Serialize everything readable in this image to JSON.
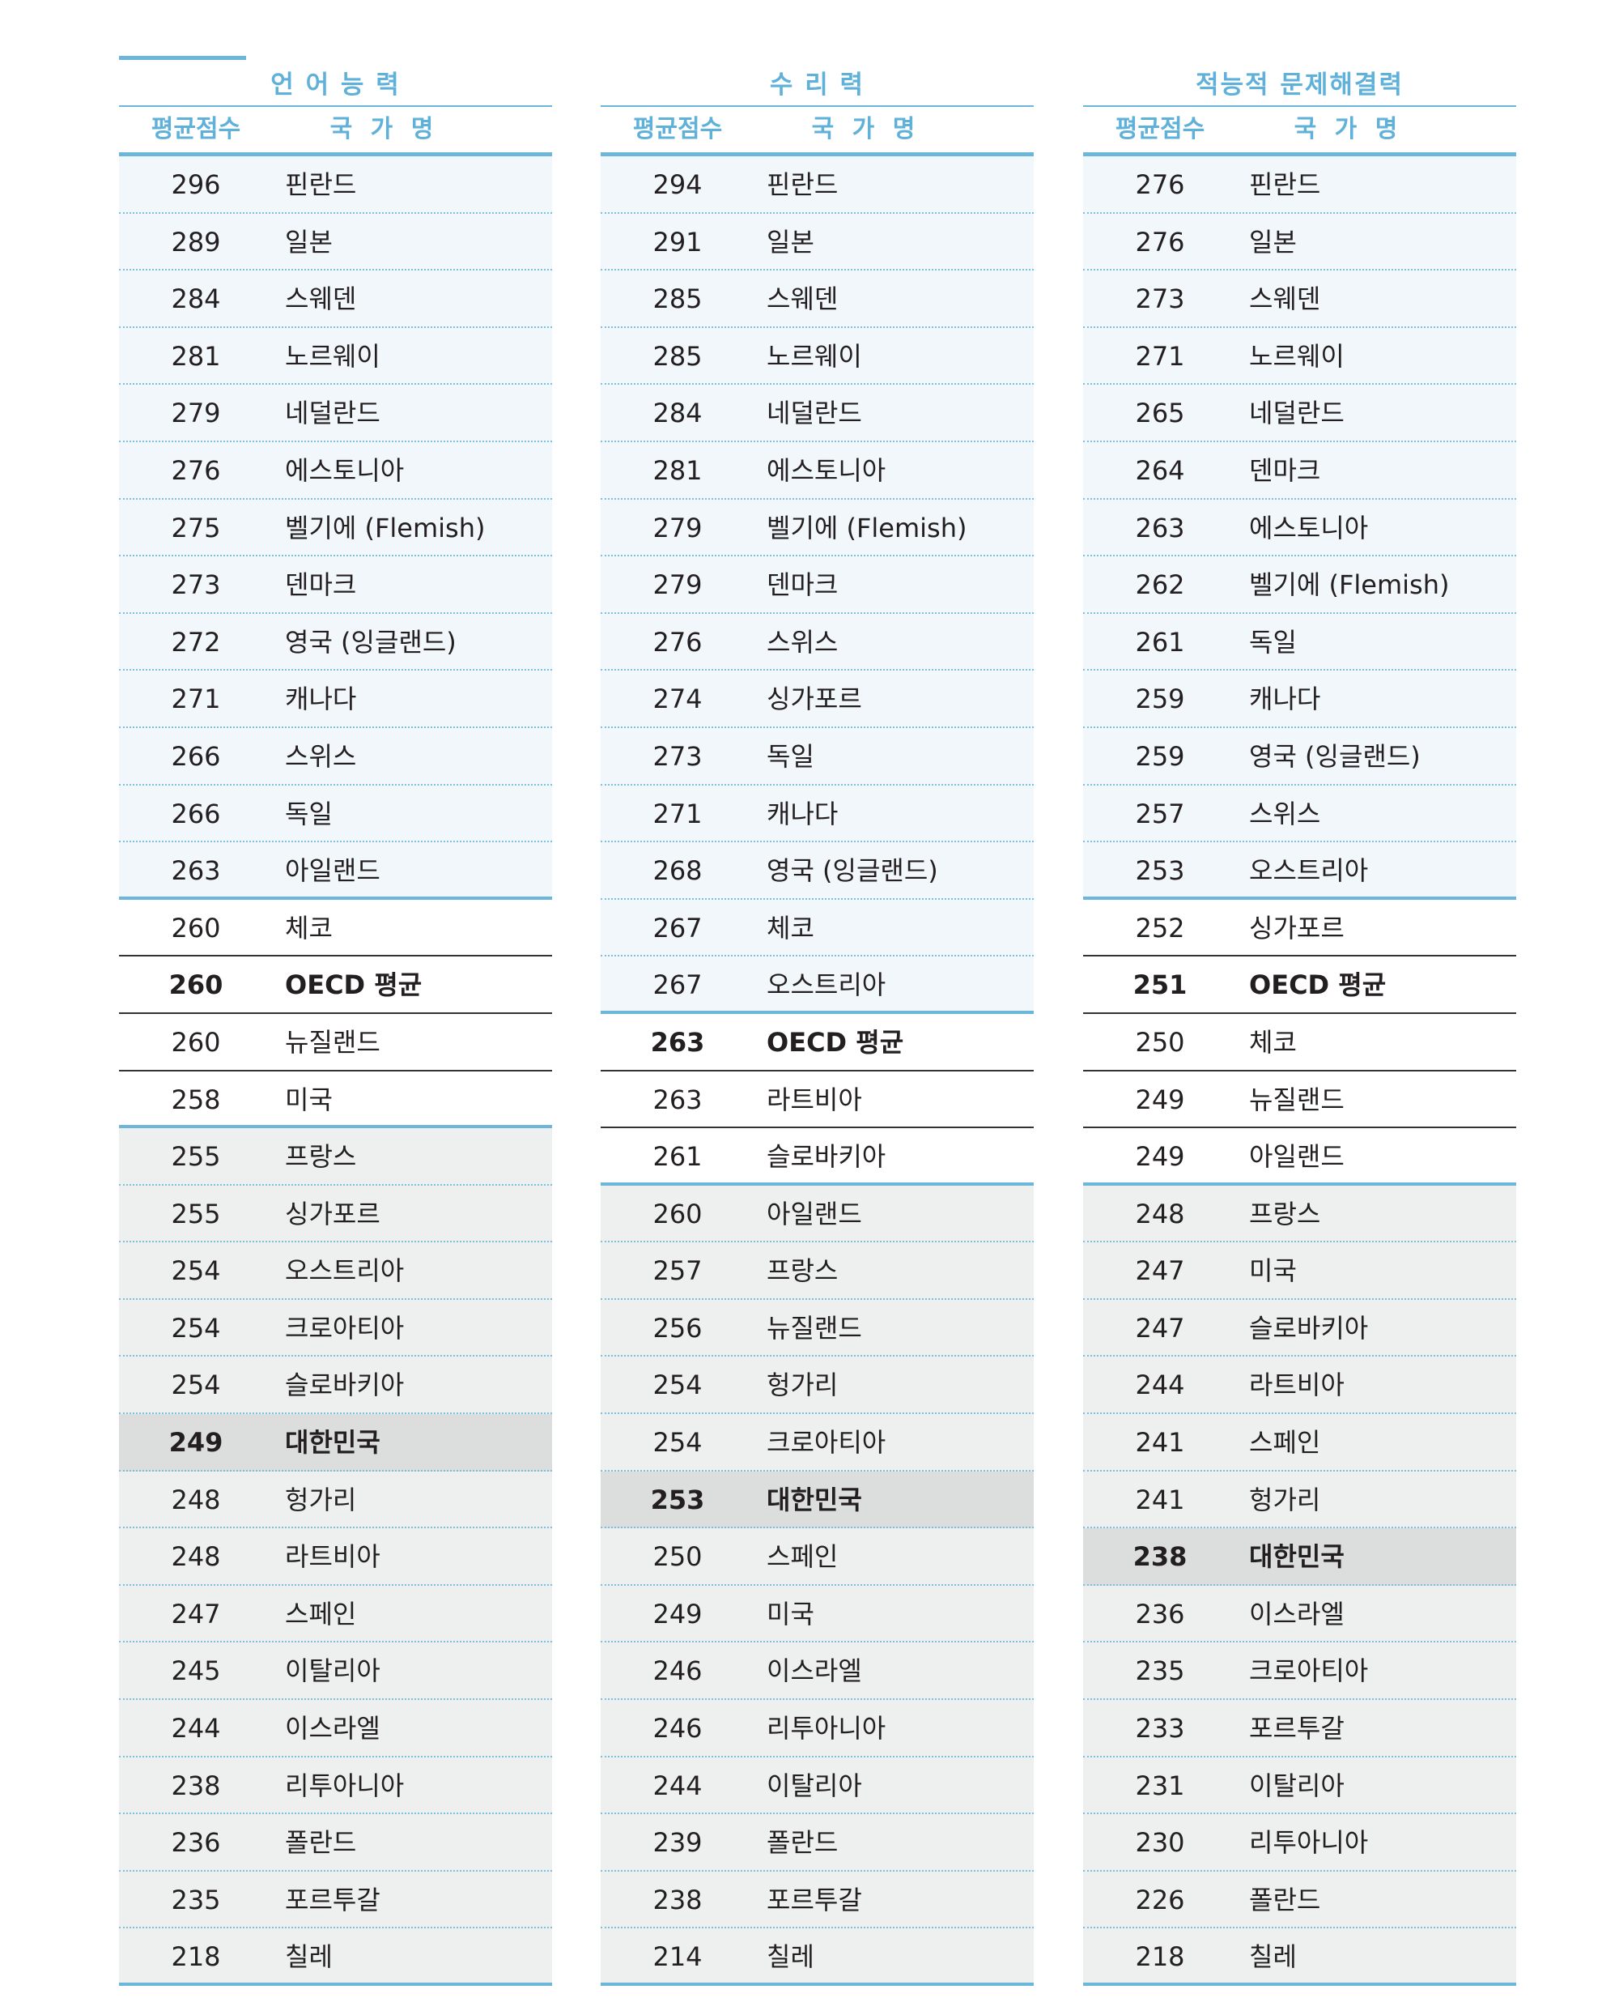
{
  "columns": [
    {
      "title": "언 어 능 력",
      "header_score": "평균점수",
      "header_country": "국 가 명",
      "rows": [
        {
          "score": "296",
          "country": "핀란드",
          "group": "above"
        },
        {
          "score": "289",
          "country": "일본",
          "group": "above"
        },
        {
          "score": "284",
          "country": "스웨덴",
          "group": "above"
        },
        {
          "score": "281",
          "country": "노르웨이",
          "group": "above"
        },
        {
          "score": "279",
          "country": "네덜란드",
          "group": "above"
        },
        {
          "score": "276",
          "country": "에스토니아",
          "group": "above"
        },
        {
          "score": "275",
          "country": "벨기에 (Flemish)",
          "group": "above"
        },
        {
          "score": "273",
          "country": "덴마크",
          "group": "above"
        },
        {
          "score": "272",
          "country": "영국 (잉글랜드)",
          "group": "above"
        },
        {
          "score": "271",
          "country": "캐나다",
          "group": "above"
        },
        {
          "score": "266",
          "country": "스위스",
          "group": "above"
        },
        {
          "score": "266",
          "country": "독일",
          "group": "above"
        },
        {
          "score": "263",
          "country": "아일랜드",
          "group": "above"
        },
        {
          "score": "260",
          "country": "체코",
          "group": "mid"
        },
        {
          "score": "260",
          "country": "OECD 평균",
          "group": "mid",
          "bold": true
        },
        {
          "score": "260",
          "country": "뉴질랜드",
          "group": "mid"
        },
        {
          "score": "258",
          "country": "미국",
          "group": "mid"
        },
        {
          "score": "255",
          "country": "프랑스",
          "group": "below"
        },
        {
          "score": "255",
          "country": "싱가포르",
          "group": "below"
        },
        {
          "score": "254",
          "country": "오스트리아",
          "group": "below"
        },
        {
          "score": "254",
          "country": "크로아티아",
          "group": "below"
        },
        {
          "score": "254",
          "country": "슬로바키아",
          "group": "below"
        },
        {
          "score": "249",
          "country": "대한민국",
          "group": "below",
          "bold": true,
          "highlight": true
        },
        {
          "score": "248",
          "country": "헝가리",
          "group": "below"
        },
        {
          "score": "248",
          "country": "라트비아",
          "group": "below"
        },
        {
          "score": "247",
          "country": "스페인",
          "group": "below"
        },
        {
          "score": "245",
          "country": "이탈리아",
          "group": "below"
        },
        {
          "score": "244",
          "country": "이스라엘",
          "group": "below"
        },
        {
          "score": "238",
          "country": "리투아니아",
          "group": "below"
        },
        {
          "score": "236",
          "country": "폴란드",
          "group": "below"
        },
        {
          "score": "235",
          "country": "포르투갈",
          "group": "below"
        },
        {
          "score": "218",
          "country": "칠레",
          "group": "below"
        }
      ]
    },
    {
      "title": "수 리 력",
      "header_score": "평균점수",
      "header_country": "국 가 명",
      "rows": [
        {
          "score": "294",
          "country": "핀란드",
          "group": "above"
        },
        {
          "score": "291",
          "country": "일본",
          "group": "above"
        },
        {
          "score": "285",
          "country": "스웨덴",
          "group": "above"
        },
        {
          "score": "285",
          "country": "노르웨이",
          "group": "above"
        },
        {
          "score": "284",
          "country": "네덜란드",
          "group": "above"
        },
        {
          "score": "281",
          "country": "에스토니아",
          "group": "above"
        },
        {
          "score": "279",
          "country": "벨기에 (Flemish)",
          "group": "above"
        },
        {
          "score": "279",
          "country": "덴마크",
          "group": "above"
        },
        {
          "score": "276",
          "country": "스위스",
          "group": "above"
        },
        {
          "score": "274",
          "country": "싱가포르",
          "group": "above"
        },
        {
          "score": "273",
          "country": "독일",
          "group": "above"
        },
        {
          "score": "271",
          "country": "캐나다",
          "group": "above"
        },
        {
          "score": "268",
          "country": "영국 (잉글랜드)",
          "group": "above"
        },
        {
          "score": "267",
          "country": "체코",
          "group": "above"
        },
        {
          "score": "267",
          "country": "오스트리아",
          "group": "above"
        },
        {
          "score": "263",
          "country": "OECD 평균",
          "group": "mid",
          "bold": true
        },
        {
          "score": "263",
          "country": "라트비아",
          "group": "mid"
        },
        {
          "score": "261",
          "country": "슬로바키아",
          "group": "mid"
        },
        {
          "score": "260",
          "country": "아일랜드",
          "group": "below"
        },
        {
          "score": "257",
          "country": "프랑스",
          "group": "below"
        },
        {
          "score": "256",
          "country": "뉴질랜드",
          "group": "below"
        },
        {
          "score": "254",
          "country": "헝가리",
          "group": "below"
        },
        {
          "score": "254",
          "country": "크로아티아",
          "group": "below"
        },
        {
          "score": "253",
          "country": "대한민국",
          "group": "below",
          "bold": true,
          "highlight": true
        },
        {
          "score": "250",
          "country": "스페인",
          "group": "below"
        },
        {
          "score": "249",
          "country": "미국",
          "group": "below"
        },
        {
          "score": "246",
          "country": "이스라엘",
          "group": "below"
        },
        {
          "score": "246",
          "country": "리투아니아",
          "group": "below"
        },
        {
          "score": "244",
          "country": "이탈리아",
          "group": "below"
        },
        {
          "score": "239",
          "country": "폴란드",
          "group": "below"
        },
        {
          "score": "238",
          "country": "포르투갈",
          "group": "below"
        },
        {
          "score": "214",
          "country": "칠레",
          "group": "below"
        }
      ]
    },
    {
      "title": "적능적 문제해결력",
      "header_score": "평균점수",
      "header_country": "국 가 명",
      "rows": [
        {
          "score": "276",
          "country": "핀란드",
          "group": "above"
        },
        {
          "score": "276",
          "country": "일본",
          "group": "above"
        },
        {
          "score": "273",
          "country": "스웨덴",
          "group": "above"
        },
        {
          "score": "271",
          "country": "노르웨이",
          "group": "above"
        },
        {
          "score": "265",
          "country": "네덜란드",
          "group": "above"
        },
        {
          "score": "264",
          "country": "덴마크",
          "group": "above"
        },
        {
          "score": "263",
          "country": "에스토니아",
          "group": "above"
        },
        {
          "score": "262",
          "country": "벨기에 (Flemish)",
          "group": "above"
        },
        {
          "score": "261",
          "country": "독일",
          "group": "above"
        },
        {
          "score": "259",
          "country": "캐나다",
          "group": "above"
        },
        {
          "score": "259",
          "country": "영국 (잉글랜드)",
          "group": "above"
        },
        {
          "score": "257",
          "country": "스위스",
          "group": "above"
        },
        {
          "score": "253",
          "country": "오스트리아",
          "group": "above"
        },
        {
          "score": "252",
          "country": "싱가포르",
          "group": "mid"
        },
        {
          "score": "251",
          "country": "OECD 평균",
          "group": "mid",
          "bold": true
        },
        {
          "score": "250",
          "country": "체코",
          "group": "mid"
        },
        {
          "score": "249",
          "country": "뉴질랜드",
          "group": "mid"
        },
        {
          "score": "249",
          "country": "아일랜드",
          "group": "mid"
        },
        {
          "score": "248",
          "country": "프랑스",
          "group": "below"
        },
        {
          "score": "247",
          "country": "미국",
          "group": "below"
        },
        {
          "score": "247",
          "country": "슬로바키아",
          "group": "below"
        },
        {
          "score": "244",
          "country": "라트비아",
          "group": "below"
        },
        {
          "score": "241",
          "country": "스페인",
          "group": "below"
        },
        {
          "score": "241",
          "country": "헝가리",
          "group": "below"
        },
        {
          "score": "238",
          "country": "대한민국",
          "group": "below",
          "bold": true,
          "highlight": true
        },
        {
          "score": "236",
          "country": "이스라엘",
          "group": "below"
        },
        {
          "score": "235",
          "country": "크로아티아",
          "group": "below"
        },
        {
          "score": "233",
          "country": "포르투갈",
          "group": "below"
        },
        {
          "score": "231",
          "country": "이탈리아",
          "group": "below"
        },
        {
          "score": "230",
          "country": "리투아니아",
          "group": "below"
        },
        {
          "score": "226",
          "country": "폴란드",
          "group": "below"
        },
        {
          "score": "218",
          "country": "칠레",
          "group": "below"
        }
      ]
    }
  ]
}
